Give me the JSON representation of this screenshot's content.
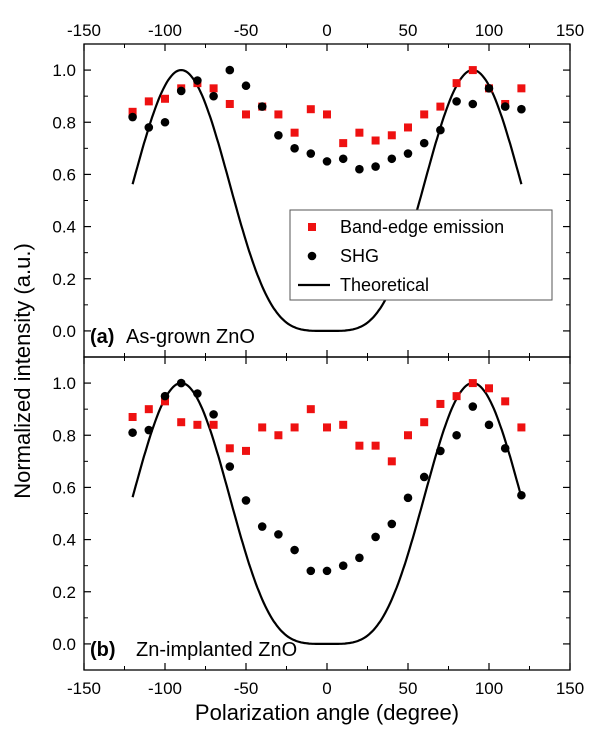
{
  "figure": {
    "xlabel": "Polarization angle (degree)",
    "ylabel": "Normalized intensity (a.u.)"
  },
  "legend": {
    "items": [
      {
        "label": "Band-edge emission",
        "marker": "square",
        "color": "#ee1111"
      },
      {
        "label": "SHG",
        "marker": "circle",
        "color": "#000000"
      },
      {
        "label": "Theoretical",
        "marker": "line",
        "color": "#000000"
      }
    ]
  },
  "chart_data": [
    {
      "type": "scatter",
      "panel_letter": "(a)",
      "panel_name": "As-grown ZnO",
      "xlim": [
        -150,
        150
      ],
      "ylim": [
        -0.1,
        1.1
      ],
      "xticks": [
        -150,
        -100,
        -50,
        0,
        50,
        100,
        150
      ],
      "yticks": [
        0.0,
        0.2,
        0.4,
        0.6,
        0.8,
        1.0
      ],
      "ytick_labels": [
        "0.0",
        "0.2",
        "0.4",
        "0.6",
        "0.8",
        "1.0"
      ],
      "xtick_position": "top",
      "legend_position": "right",
      "series": [
        {
          "name": "Band-edge emission",
          "marker": "square",
          "color": "#ee1111",
          "x": [
            -120,
            -110,
            -100,
            -90,
            -80,
            -70,
            -60,
            -50,
            -40,
            -30,
            -20,
            -10,
            0,
            10,
            20,
            30,
            40,
            50,
            60,
            70,
            80,
            90,
            100,
            110,
            120
          ],
          "y": [
            0.84,
            0.88,
            0.89,
            0.93,
            0.95,
            0.93,
            0.87,
            0.83,
            0.86,
            0.83,
            0.76,
            0.85,
            0.83,
            0.72,
            0.76,
            0.73,
            0.75,
            0.78,
            0.83,
            0.86,
            0.95,
            1.0,
            0.93,
            0.87,
            0.93
          ]
        },
        {
          "name": "SHG",
          "marker": "circle",
          "color": "#000000",
          "x": [
            -120,
            -110,
            -100,
            -90,
            -80,
            -70,
            -60,
            -50,
            -40,
            -30,
            -20,
            -10,
            0,
            10,
            20,
            30,
            40,
            50,
            60,
            70,
            80,
            90,
            100,
            110,
            120
          ],
          "y": [
            0.82,
            0.78,
            0.8,
            0.92,
            0.96,
            0.9,
            1.0,
            0.94,
            0.86,
            0.75,
            0.7,
            0.68,
            0.65,
            0.66,
            0.62,
            0.63,
            0.66,
            0.68,
            0.72,
            0.77,
            0.88,
            0.87,
            0.93,
            0.86,
            0.85
          ]
        },
        {
          "name": "Theoretical",
          "marker": "line",
          "color": "#000000",
          "function": "cos4",
          "amplitude": 1.0,
          "peak_x": 90,
          "x_range": [
            -120,
            120
          ]
        }
      ]
    },
    {
      "type": "scatter",
      "panel_letter": "(b)",
      "panel_name": "Zn-implanted ZnO",
      "xlim": [
        -150,
        150
      ],
      "ylim": [
        -0.1,
        1.1
      ],
      "xticks": [
        -150,
        -100,
        -50,
        0,
        50,
        100,
        150
      ],
      "yticks": [
        0.0,
        0.2,
        0.4,
        0.6,
        0.8,
        1.0
      ],
      "ytick_labels": [
        "0.0",
        "0.2",
        "0.4",
        "0.6",
        "0.8",
        "1.0"
      ],
      "xtick_position": "bottom",
      "series": [
        {
          "name": "Band-edge emission",
          "marker": "square",
          "color": "#ee1111",
          "x": [
            -120,
            -110,
            -100,
            -90,
            -80,
            -70,
            -60,
            -50,
            -40,
            -30,
            -20,
            -10,
            0,
            10,
            20,
            30,
            40,
            50,
            60,
            70,
            80,
            90,
            100,
            110,
            120
          ],
          "y": [
            0.87,
            0.9,
            0.93,
            0.85,
            0.84,
            0.84,
            0.75,
            0.74,
            0.83,
            0.8,
            0.83,
            0.9,
            0.83,
            0.84,
            0.76,
            0.76,
            0.7,
            0.8,
            0.85,
            0.92,
            0.95,
            1.0,
            0.98,
            0.93,
            0.83
          ]
        },
        {
          "name": "SHG",
          "marker": "circle",
          "color": "#000000",
          "x": [
            -120,
            -110,
            -100,
            -90,
            -80,
            -70,
            -60,
            -50,
            -40,
            -30,
            -20,
            -10,
            0,
            10,
            20,
            30,
            40,
            50,
            60,
            70,
            80,
            90,
            100,
            110,
            120
          ],
          "y": [
            0.81,
            0.82,
            0.95,
            1.0,
            0.96,
            0.88,
            0.68,
            0.55,
            0.45,
            0.42,
            0.36,
            0.28,
            0.28,
            0.3,
            0.33,
            0.41,
            0.46,
            0.56,
            0.64,
            0.74,
            0.8,
            0.91,
            0.84,
            0.75,
            0.57
          ]
        },
        {
          "name": "Theoretical",
          "marker": "line",
          "color": "#000000",
          "function": "cos4",
          "amplitude": 1.0,
          "peak_x": 90,
          "x_range": [
            -120,
            120
          ]
        }
      ]
    }
  ]
}
